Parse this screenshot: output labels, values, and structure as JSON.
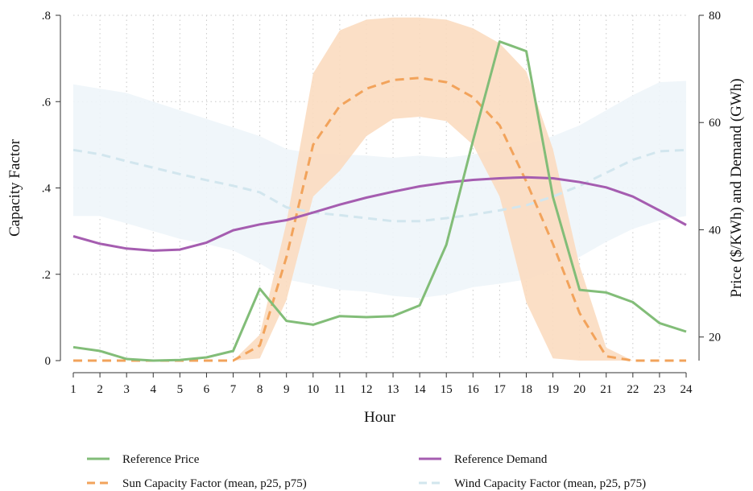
{
  "chart_data": {
    "type": "line",
    "xlabel": "Hour",
    "ylabel_left": "Capacity Factor",
    "ylabel_right": "Price ($/KWh) and Demand (GWh)",
    "x": [
      1,
      2,
      3,
      4,
      5,
      6,
      7,
      8,
      9,
      10,
      11,
      12,
      13,
      14,
      15,
      16,
      17,
      18,
      19,
      20,
      21,
      22,
      23,
      24
    ],
    "x_ticks": [
      "1",
      "2",
      "3",
      "4",
      "5",
      "6",
      "7",
      "8",
      "9",
      "10",
      "11",
      "12",
      "13",
      "14",
      "15",
      "16",
      "17",
      "18",
      "19",
      "20",
      "21",
      "22",
      "23",
      "24"
    ],
    "ylim_left": [
      0,
      0.8
    ],
    "y_ticks_left": [
      {
        "value": 0,
        "label": "0"
      },
      {
        "value": 0.2,
        "label": ".2"
      },
      {
        "value": 0.4,
        "label": ".4"
      },
      {
        "value": 0.6,
        "label": ".6"
      },
      {
        "value": 0.8,
        "label": ".8"
      }
    ],
    "ylim_right": [
      15.6,
      80
    ],
    "y_ticks_right": [
      {
        "value": 20,
        "label": "20"
      },
      {
        "value": 40,
        "label": "40"
      },
      {
        "value": 60,
        "label": "60"
      },
      {
        "value": 80,
        "label": "80"
      }
    ],
    "grid": true,
    "legend_placement": "bottom",
    "series": [
      {
        "name": "Reference Price",
        "axis": "right",
        "style": "solid",
        "color": "#82bd78",
        "values": [
          18.1,
          17.4,
          15.9,
          15.6,
          15.7,
          16.2,
          17.4,
          29.0,
          23.0,
          22.3,
          23.9,
          23.7,
          23.9,
          25.9,
          37.2,
          56.6,
          75.1,
          73.3,
          46.1,
          28.8,
          28.3,
          26.5,
          22.6,
          21.0
        ]
      },
      {
        "name": "Reference Demand",
        "axis": "right",
        "style": "solid",
        "color": "#a55db0",
        "values": [
          38.8,
          37.4,
          36.5,
          36.1,
          36.3,
          37.6,
          39.9,
          41.0,
          41.8,
          43.2,
          44.7,
          46.0,
          47.1,
          48.1,
          48.8,
          49.3,
          49.6,
          49.8,
          49.6,
          48.9,
          47.9,
          46.2,
          43.6,
          40.9
        ]
      },
      {
        "name": "Sun Capacity Factor (mean, p25, p75)",
        "axis": "left",
        "style": "dashed",
        "color": "#f2a35b",
        "band_color": "#fbdcc0",
        "values": [
          0,
          0,
          0,
          0,
          0,
          0,
          0,
          0.035,
          0.24,
          0.5,
          0.59,
          0.63,
          0.65,
          0.655,
          0.645,
          0.61,
          0.545,
          0.415,
          0.27,
          0.11,
          0.01,
          0,
          0,
          0
        ],
        "p25": [
          0,
          0,
          0,
          0,
          0,
          0,
          0,
          0.005,
          0.14,
          0.38,
          0.44,
          0.52,
          0.56,
          0.565,
          0.555,
          0.5,
          0.38,
          0.135,
          0.005,
          0.0,
          0,
          0,
          0,
          0
        ],
        "p75": [
          0,
          0,
          0,
          0,
          0,
          0,
          0,
          0.06,
          0.32,
          0.665,
          0.765,
          0.79,
          0.795,
          0.795,
          0.79,
          0.77,
          0.735,
          0.67,
          0.49,
          0.22,
          0.03,
          0,
          0,
          0
        ]
      },
      {
        "name": "Wind Capacity Factor (mean, p25, p75)",
        "axis": "left",
        "style": "dashed",
        "color": "#d2e6ee",
        "band_color": "#eef5f9",
        "values": [
          0.488,
          0.478,
          0.462,
          0.447,
          0.432,
          0.418,
          0.405,
          0.39,
          0.355,
          0.343,
          0.337,
          0.33,
          0.323,
          0.323,
          0.33,
          0.338,
          0.348,
          0.36,
          0.38,
          0.405,
          0.435,
          0.465,
          0.485,
          0.488
        ],
        "p25": [
          0.335,
          0.335,
          0.318,
          0.3,
          0.282,
          0.27,
          0.255,
          0.225,
          0.188,
          0.176,
          0.164,
          0.16,
          0.15,
          0.145,
          0.153,
          0.17,
          0.178,
          0.188,
          0.21,
          0.24,
          0.275,
          0.305,
          0.325,
          0.335
        ],
        "p75": [
          0.64,
          0.63,
          0.62,
          0.6,
          0.58,
          0.56,
          0.54,
          0.52,
          0.49,
          0.48,
          0.478,
          0.475,
          0.47,
          0.475,
          0.47,
          0.478,
          0.488,
          0.5,
          0.52,
          0.545,
          0.58,
          0.615,
          0.645,
          0.648
        ]
      }
    ],
    "legend": [
      {
        "label": "Reference Price",
        "color": "#82bd78",
        "style": "solid"
      },
      {
        "label": "Reference Demand",
        "color": "#a55db0",
        "style": "solid"
      },
      {
        "label": "Sun Capacity Factor (mean, p25, p75)",
        "color": "#f2a35b",
        "style": "dashed"
      },
      {
        "label": "Wind Capacity Factor (mean, p25, p75)",
        "color": "#d2e6ee",
        "style": "dashed"
      }
    ]
  }
}
